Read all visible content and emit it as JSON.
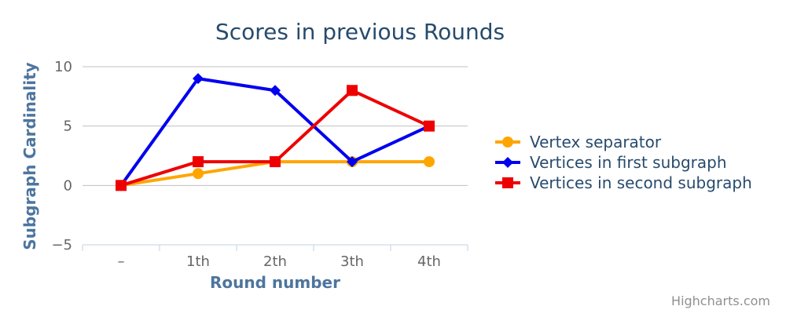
{
  "chart_data": {
    "type": "line",
    "title": "Scores in previous Rounds",
    "xlabel": "Round number",
    "ylabel": "Subgraph Cardinality",
    "categories": [
      "–",
      "1th",
      "2th",
      "3th",
      "4th"
    ],
    "ylim": [
      -5,
      10
    ],
    "yticks": [
      -5,
      0,
      5,
      10
    ],
    "grid": true,
    "legend": "right",
    "series": [
      {
        "name": "Vertex separator",
        "marker": "circle",
        "color": "#FFA500",
        "values": [
          0,
          1,
          2,
          2,
          2
        ]
      },
      {
        "name": "Vertices in first subgraph",
        "marker": "diamond",
        "color": "#0000EE",
        "values": [
          0,
          9,
          8,
          2,
          5
        ]
      },
      {
        "name": "Vertices in second subgraph",
        "marker": "square",
        "color": "#EE0000",
        "values": [
          0,
          2,
          2,
          8,
          5
        ]
      }
    ],
    "credits": "Highcharts.com"
  }
}
